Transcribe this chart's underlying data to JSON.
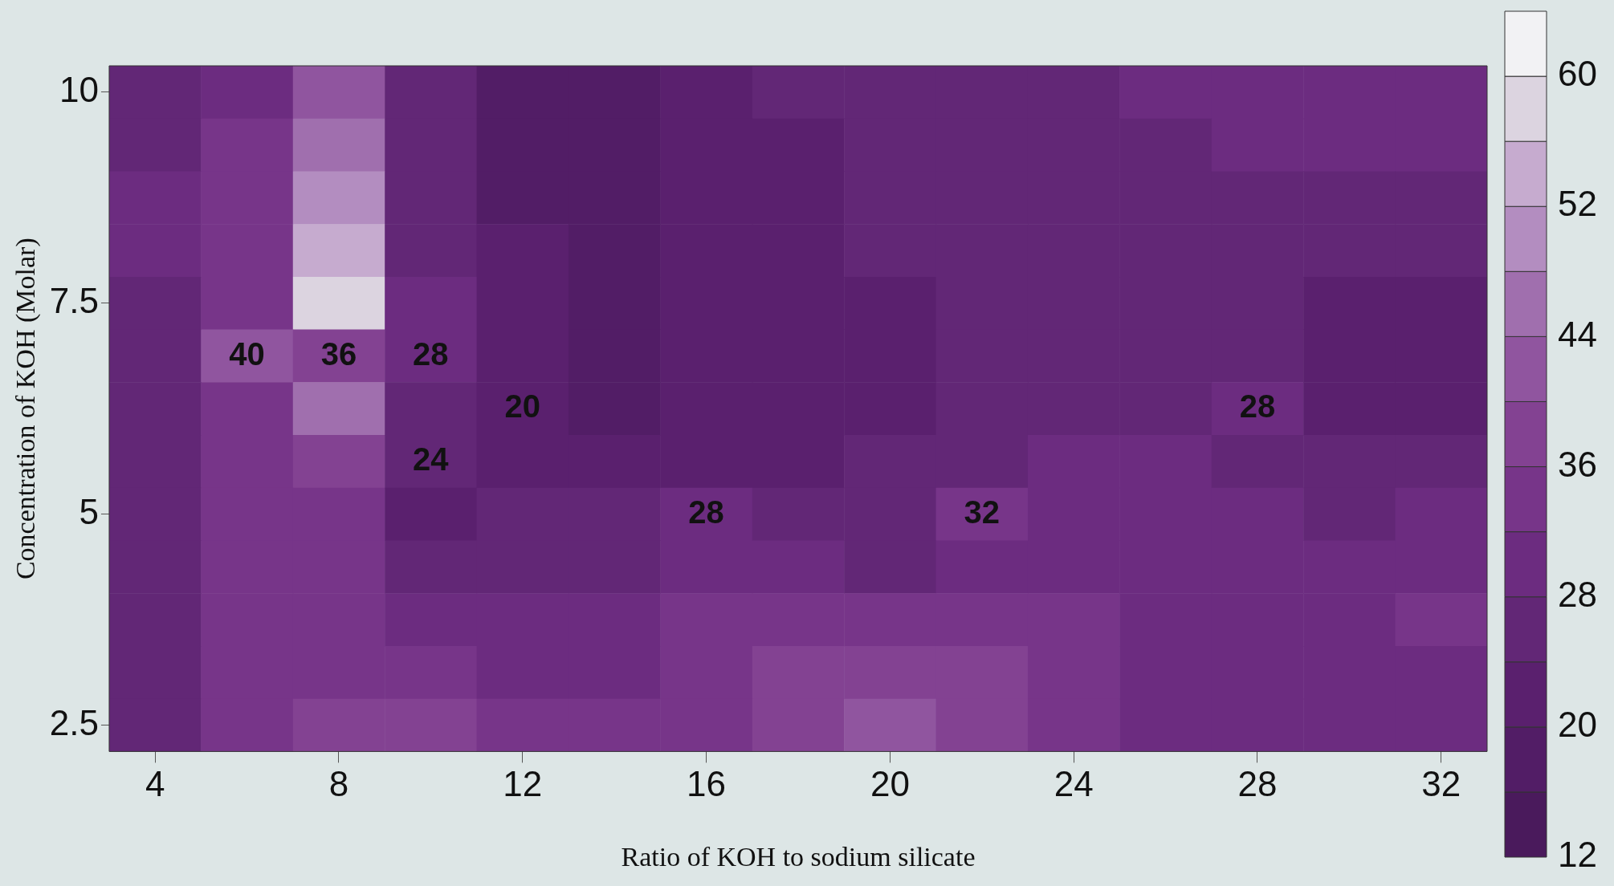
{
  "chart_data": {
    "type": "heatmap",
    "xlabel": "Ratio of KOH to sodium silicate",
    "ylabel": "Concentration of KOH (Molar)",
    "categories": [
      "4",
      null,
      "8",
      null,
      "12",
      null,
      "16",
      null,
      "20",
      null,
      "24",
      null,
      "28",
      null,
      "32"
    ],
    "y_categories": [
      "10",
      null,
      null,
      null,
      "7.5",
      null,
      null,
      null,
      "5",
      null,
      null,
      null,
      "2.5"
    ],
    "cells": [
      [
        26,
        31,
        40,
        26,
        18,
        18,
        22,
        24,
        27,
        27,
        27,
        28,
        29,
        28,
        29
      ],
      [
        27,
        32,
        44,
        26,
        18,
        18,
        22,
        23,
        26,
        27,
        27,
        27,
        28,
        28,
        28
      ],
      [
        28,
        33,
        50,
        26,
        19,
        18,
        22,
        22,
        25,
        27,
        27,
        27,
        27,
        26,
        26
      ],
      [
        28,
        34,
        55,
        27,
        20,
        18,
        21,
        22,
        24,
        27,
        27,
        27,
        26,
        24,
        24
      ],
      [
        27,
        34,
        58,
        28,
        21,
        18,
        20,
        21,
        23,
        26,
        27,
        27,
        25,
        22,
        22
      ],
      [
        27,
        40,
        36,
        28,
        22,
        18,
        20,
        21,
        23,
        26,
        27,
        27,
        25,
        22,
        22
      ],
      [
        27,
        33,
        44,
        25,
        20,
        19,
        20,
        21,
        23,
        26,
        27,
        27,
        28,
        23,
        23
      ],
      [
        27,
        32,
        38,
        24,
        23,
        22,
        22,
        22,
        24,
        27,
        28,
        28,
        27,
        24,
        25
      ],
      [
        27,
        32,
        34,
        22,
        24,
        24,
        28,
        25,
        26,
        32,
        30,
        30,
        29,
        27,
        28
      ],
      [
        26,
        32,
        33,
        25,
        26,
        27,
        29,
        28,
        27,
        30,
        31,
        31,
        30,
        29,
        30
      ],
      [
        26,
        32,
        34,
        29,
        30,
        31,
        33,
        34,
        35,
        34,
        32,
        31,
        29,
        31,
        32
      ],
      [
        26,
        32,
        35,
        34,
        31,
        31,
        32,
        36,
        39,
        36,
        33,
        31,
        28,
        30,
        31
      ],
      [
        26,
        32,
        36,
        36,
        33,
        32,
        33,
        38,
        43,
        37,
        33,
        30,
        28,
        30,
        31
      ]
    ],
    "cell_labels": [
      [
        null,
        null,
        null,
        null,
        null,
        null,
        null,
        null,
        null,
        null,
        null,
        null,
        null,
        null,
        null
      ],
      [
        null,
        null,
        null,
        null,
        null,
        null,
        null,
        null,
        null,
        null,
        null,
        null,
        null,
        null,
        null
      ],
      [
        null,
        null,
        null,
        null,
        null,
        null,
        null,
        null,
        null,
        null,
        null,
        null,
        null,
        null,
        null
      ],
      [
        null,
        null,
        null,
        null,
        null,
        null,
        null,
        null,
        null,
        null,
        null,
        null,
        null,
        null,
        null
      ],
      [
        null,
        null,
        null,
        null,
        null,
        null,
        null,
        null,
        null,
        null,
        null,
        null,
        null,
        null,
        null
      ],
      [
        null,
        "40",
        "36",
        "28",
        null,
        null,
        null,
        null,
        null,
        null,
        null,
        null,
        null,
        null,
        null
      ],
      [
        null,
        null,
        null,
        null,
        "20",
        null,
        null,
        null,
        null,
        null,
        null,
        null,
        "28",
        null,
        null
      ],
      [
        null,
        null,
        null,
        "24",
        null,
        null,
        null,
        null,
        null,
        null,
        null,
        null,
        null,
        null,
        null
      ],
      [
        null,
        null,
        null,
        null,
        null,
        null,
        "28",
        null,
        null,
        "32",
        null,
        null,
        null,
        null,
        null
      ],
      [
        null,
        null,
        null,
        null,
        null,
        null,
        null,
        null,
        null,
        null,
        null,
        null,
        null,
        null,
        null
      ],
      [
        null,
        null,
        null,
        null,
        null,
        null,
        null,
        null,
        null,
        null,
        null,
        null,
        null,
        null,
        null
      ],
      [
        null,
        null,
        null,
        null,
        null,
        null,
        null,
        null,
        null,
        null,
        null,
        null,
        null,
        null,
        null
      ],
      [
        null,
        null,
        null,
        null,
        null,
        null,
        null,
        null,
        null,
        null,
        null,
        null,
        null,
        null,
        null
      ]
    ],
    "clim": [
      12,
      64
    ],
    "cticks": [
      12,
      20,
      28,
      36,
      44,
      52,
      60
    ]
  }
}
